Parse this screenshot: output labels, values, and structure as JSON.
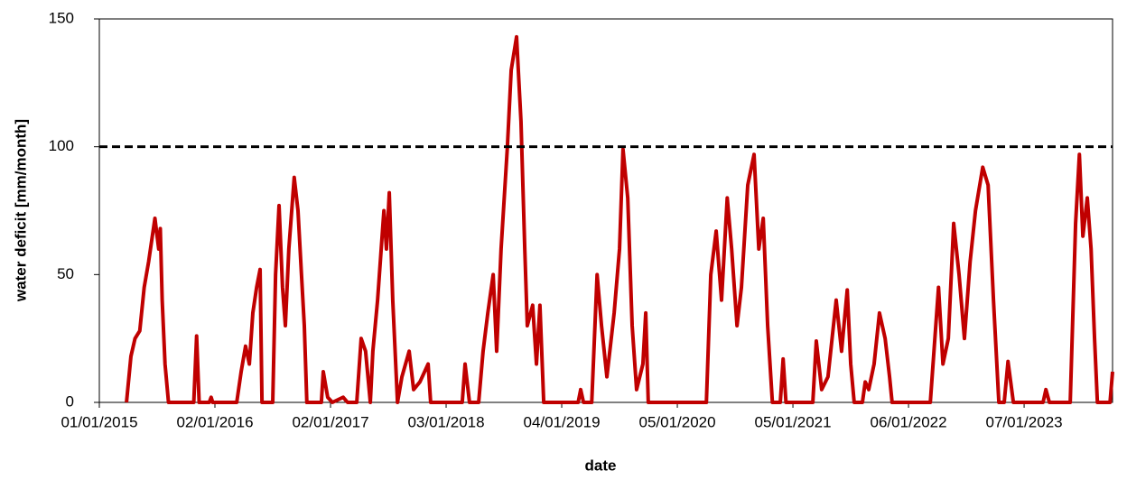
{
  "chart_data": {
    "type": "line",
    "x_label": "date",
    "y_label": "water deficit [mm/month]",
    "color": "#c00000",
    "x": [
      "28/03/2015",
      "11/04/2015",
      "24/04/2015",
      "09/05/2015",
      "23/05/2015",
      "06/06/2015",
      "26/06/2015",
      "08/07/2015",
      "13/07/2015",
      "19/07/2015",
      "28/07/2015",
      "08/08/2015",
      "27/10/2015",
      "05/11/2015",
      "13/11/2015",
      "15/12/2015",
      "21/12/2015",
      "26/12/2015",
      "11/03/2016",
      "25/03/2016",
      "08/04/2016",
      "20/04/2016",
      "01/05/2016",
      "13/05/2016",
      "24/05/2016",
      "30/05/2016",
      "03/07/2016",
      "12/07/2016",
      "23/07/2016",
      "03/08/2016",
      "12/08/2016",
      "23/08/2016",
      "09/09/2016",
      "21/09/2016",
      "02/10/2016",
      "11/10/2016",
      "19/10/2016",
      "04/12/2016",
      "10/12/2016",
      "24/12/2016",
      "08/01/2017",
      "11/02/2017",
      "25/02/2017",
      "26/03/2017",
      "09/04/2017",
      "23/04/2017",
      "08/05/2017",
      "16/05/2017",
      "31/05/2017",
      "20/06/2017",
      "28/06/2017",
      "07/07/2017",
      "18/07/2017",
      "02/08/2017",
      "16/08/2017",
      "08/09/2017",
      "22/09/2017",
      "12/10/2017",
      "07/11/2017",
      "15/11/2017",
      "23/02/2018",
      "04/03/2018",
      "18/03/2018",
      "16/04/2018",
      "30/04/2018",
      "15/05/2018",
      "01/06/2018",
      "12/06/2018",
      "26/06/2018",
      "16/07/2018",
      "28/07/2018",
      "14/08/2018",
      "28/08/2018",
      "09/09/2018",
      "17/09/2018",
      "04/10/2018",
      "16/10/2018",
      "27/10/2018",
      "08/11/2018",
      "25/02/2019",
      "05/03/2019",
      "14/03/2019",
      "09/04/2019",
      "26/04/2019",
      "10/05/2019",
      "27/05/2019",
      "19/06/2019",
      "06/07/2019",
      "17/07/2019",
      "01/08/2019",
      "15/08/2019",
      "29/08/2019",
      "18/09/2019",
      "27/09/2019",
      "05/10/2019",
      "03/02/2020",
      "06/04/2020",
      "20/04/2020",
      "07/05/2020",
      "24/05/2020",
      "11/06/2020",
      "25/06/2020",
      "12/07/2020",
      "26/07/2020",
      "15/08/2020",
      "04/09/2020",
      "19/09/2020",
      "03/10/2020",
      "17/10/2020",
      "01/11/2020",
      "26/11/2020",
      "05/12/2020",
      "14/12/2020",
      "09/03/2021",
      "20/03/2021",
      "06/04/2021",
      "26/04/2021",
      "22/05/2021",
      "08/06/2021",
      "26/06/2021",
      "07/07/2021",
      "18/07/2021",
      "13/08/2021",
      "22/08/2021",
      "02/09/2021",
      "19/09/2021",
      "06/10/2021",
      "24/10/2021",
      "07/11/2021",
      "15/11/2021",
      "16/03/2022",
      "11/04/2022",
      "25/04/2022",
      "12/05/2022",
      "29/05/2022",
      "15/06/2022",
      "02/07/2022",
      "20/07/2022",
      "06/08/2022",
      "29/08/2022",
      "15/09/2022",
      "02/10/2022",
      "19/10/2022",
      "05/11/2022",
      "17/11/2022",
      "04/12/2022",
      "08/03/2023",
      "17/03/2023",
      "28/03/2023",
      "02/06/2023",
      "19/06/2023",
      "01/07/2023",
      "12/07/2023",
      "26/07/2023",
      "07/08/2023",
      "18/08/2023",
      "27/08/2023",
      "06/10/2023",
      "14/10/2023"
    ],
    "values": [
      0,
      18,
      25,
      28,
      45,
      55,
      72,
      60,
      68,
      40,
      15,
      0,
      0,
      26,
      0,
      0,
      2,
      0,
      0,
      12,
      22,
      15,
      35,
      45,
      52,
      0,
      0,
      50,
      77,
      45,
      30,
      60,
      88,
      75,
      50,
      30,
      0,
      0,
      12,
      2,
      0,
      2,
      0,
      0,
      25,
      20,
      0,
      20,
      40,
      75,
      60,
      82,
      40,
      0,
      10,
      20,
      5,
      8,
      15,
      0,
      0,
      15,
      0,
      0,
      20,
      35,
      50,
      20,
      60,
      100,
      130,
      143,
      110,
      60,
      30,
      38,
      15,
      38,
      0,
      0,
      5,
      0,
      0,
      50,
      30,
      10,
      35,
      60,
      99,
      80,
      30,
      5,
      15,
      35,
      0,
      0,
      0,
      50,
      67,
      40,
      80,
      60,
      30,
      45,
      85,
      97,
      60,
      72,
      30,
      0,
      0,
      17,
      0,
      0,
      24,
      5,
      10,
      40,
      20,
      44,
      15,
      0,
      0,
      8,
      5,
      15,
      35,
      25,
      10,
      0,
      0,
      45,
      15,
      25,
      70,
      50,
      25,
      55,
      75,
      92,
      85,
      40,
      0,
      0,
      16,
      0,
      0,
      5,
      0,
      0,
      70,
      97,
      65,
      80,
      60,
      25,
      0,
      0,
      12
    ],
    "xlim": [
      "01/01/2015",
      "14/10/2023"
    ],
    "xticks": [
      "01/01/2015",
      "02/01/2016",
      "02/01/2017",
      "03/01/2018",
      "04/01/2019",
      "05/01/2020",
      "05/01/2021",
      "06/01/2022",
      "07/01/2023"
    ],
    "ylim": [
      0,
      150
    ],
    "yticks": [
      0,
      50,
      100,
      150
    ],
    "reference_line": {
      "value": 100,
      "color": "#000000",
      "dashed": true
    }
  }
}
